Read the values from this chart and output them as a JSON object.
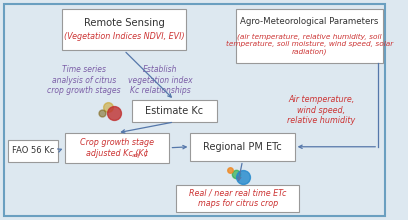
{
  "bg_color": "#dde8f0",
  "border_color": "#6a9fc0",
  "box_color": "#ffffff",
  "box_edge_color": "#999999",
  "arrow_color": "#5577aa",
  "text_black": "#333333",
  "text_purple": "#7b5ea7",
  "text_red": "#cc3333",
  "remote_sensing_title": "Remote Sensing",
  "remote_sensing_sub": "(Vegetation Indices NDVI, EVI)",
  "agro_title": "Agro-Meteorological Parameters",
  "agro_sub": "(air temperature, relative humidity, soil\ntemperature, soil moisture, wind speed, solar\nradiation)",
  "time_series_text": "Time series\nanalysis of citrus\ncrop growth stages",
  "establish_text": "Establish\nvegetation index\nKc relationships",
  "estimate_text": "Estimate Kc",
  "fao_text": "FAO 56 Kc",
  "crop_growth_line1": "Crop growth stage",
  "crop_growth_line2": "adjusted Kc (Kc",
  "crop_growth_sub": "adj",
  "crop_growth_line3": ")",
  "regional_text": "Regional PM ETc",
  "air_temp_text": "Air temperature,\nwind speed,\nrelative humidity",
  "real_time_text": "Real / near real time ETc\nmaps for citrus crop"
}
